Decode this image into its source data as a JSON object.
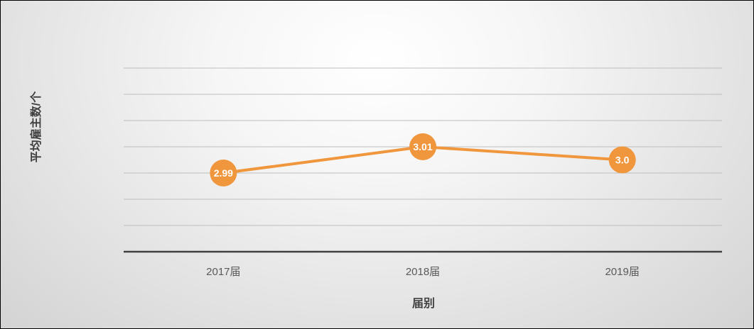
{
  "chart_data": {
    "type": "line",
    "categories": [
      "2017届",
      "2018届",
      "2019届"
    ],
    "series": [
      {
        "values": [
          2.99,
          3.01,
          3.0
        ],
        "labels": [
          "2.99",
          "3.01",
          "3.0"
        ]
      }
    ],
    "xlabel": "届别",
    "ylabel": "平均雇主数/个",
    "ylim": [
      2.93,
      3.07
    ],
    "grid": true,
    "color": "#f0963c"
  }
}
